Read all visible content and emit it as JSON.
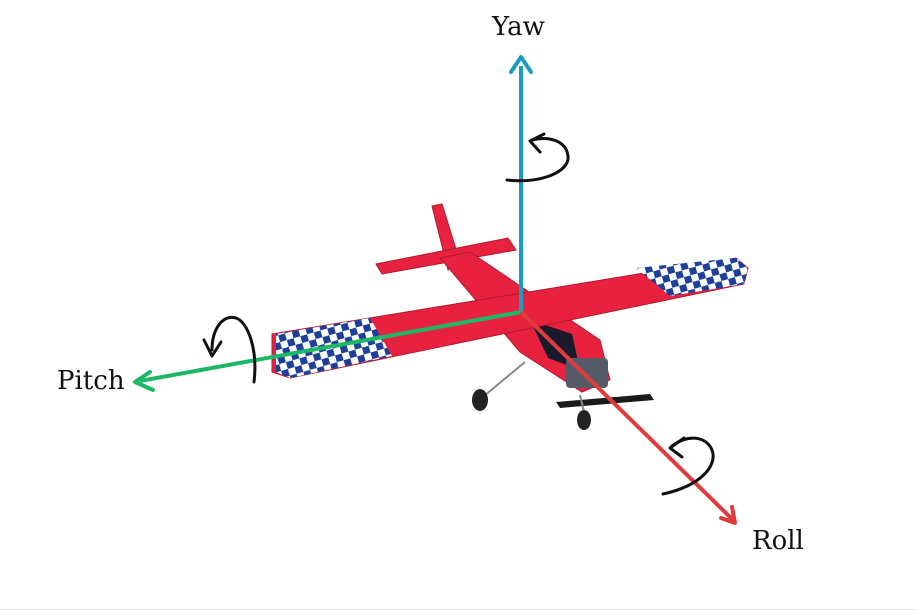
{
  "axes": {
    "yaw": {
      "label": "Yaw",
      "color": "#1a9bc0"
    },
    "pitch": {
      "label": "Pitch",
      "color": "#1db866"
    },
    "roll": {
      "label": "Roll",
      "color": "#e23b3b"
    }
  },
  "airplane": {
    "body_color": "#e8213f",
    "checker_colors": [
      "#1e3f9a",
      "#ffffff"
    ],
    "gear_color": "#222222"
  },
  "rotation_arrow_color": "#111111"
}
